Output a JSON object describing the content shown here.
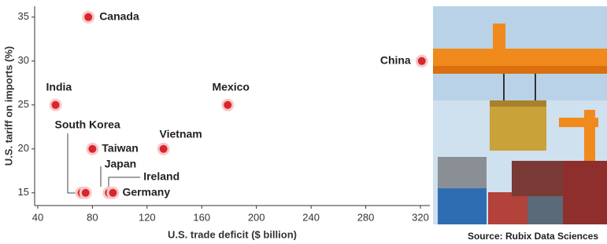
{
  "chart_data": {
    "type": "scatter",
    "x_label": "U.S. trade deficit ($ billion)",
    "y_label": "U.S. tariff on imports (%)",
    "source": "Source: Rubix Data Sciences",
    "labels": [
      "Canada",
      "China",
      "India",
      "Mexico",
      "Vietnam",
      "Taiwan",
      "South Korea",
      "Japan",
      "Ireland",
      "Germany"
    ],
    "x": [
      77,
      321,
      53,
      179,
      132,
      80,
      72,
      75,
      92,
      95
    ],
    "values": [
      35,
      30,
      25,
      25,
      20,
      20,
      15,
      15,
      15,
      15
    ],
    "color": "#d8262b",
    "xlim": [
      38,
      326
    ],
    "ylim": [
      14,
      36
    ],
    "xticks": [
      40,
      80,
      120,
      160,
      200,
      240,
      280,
      320
    ],
    "yticks": [
      15,
      20,
      25,
      30,
      35
    ]
  }
}
